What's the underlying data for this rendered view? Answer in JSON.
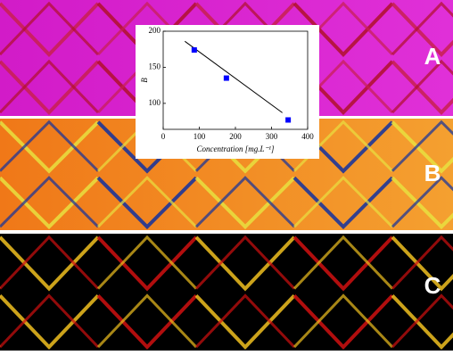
{
  "panel_labels": [
    "A",
    "B",
    "C"
  ],
  "chart_data": {
    "type": "scatter",
    "xlabel": "Concentration [mg.L⁻¹]",
    "ylabel": "B",
    "xlim": [
      0,
      400
    ],
    "xticks": [
      0,
      100,
      200,
      300,
      400
    ],
    "ylim": [
      64,
      200
    ],
    "yticks": [
      100,
      150,
      200
    ],
    "points": {
      "x": [
        86,
        175,
        346
      ],
      "y": [
        174,
        135,
        77
      ],
      "color": "#0000ff"
    },
    "fit_line": {
      "x": [
        60,
        330
      ],
      "y": [
        186,
        87
      ],
      "color": "#000000"
    }
  }
}
